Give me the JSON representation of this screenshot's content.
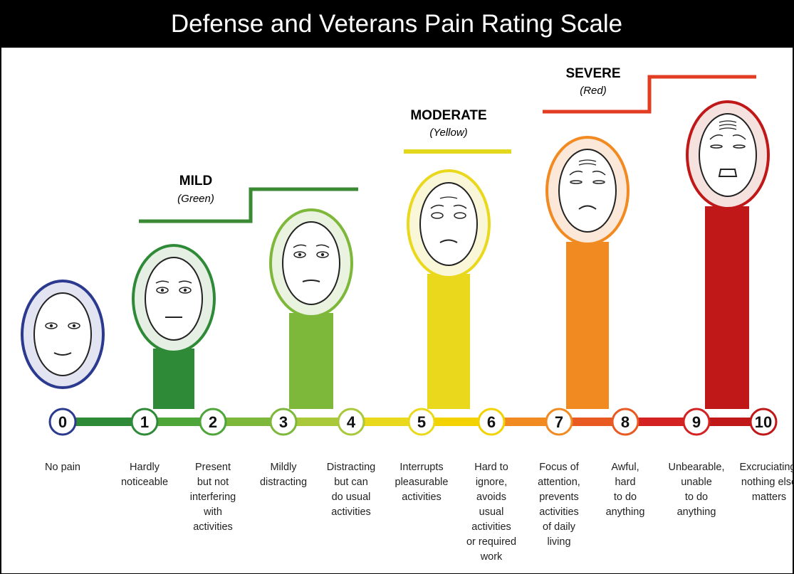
{
  "title": "Defense and Veterans Pain Rating Scale",
  "categories": [
    {
      "name": "MILD",
      "color_name": "(Green)"
    },
    {
      "name": "MODERATE",
      "color_name": "(Yellow)"
    },
    {
      "name": "SEVERE",
      "color_name": "(Red)"
    }
  ],
  "levels": [
    {
      "number": "0",
      "description": [
        "No pain"
      ]
    },
    {
      "number": "1",
      "description": [
        "Hardly",
        "noticeable"
      ]
    },
    {
      "number": "2",
      "description": [
        "Present",
        "but not",
        "interfering",
        "with",
        "activities"
      ]
    },
    {
      "number": "3",
      "description": [
        "Mildly",
        "distracting"
      ]
    },
    {
      "number": "4",
      "description": [
        "Distracting",
        "but can",
        "do usual",
        "activities"
      ]
    },
    {
      "number": "5",
      "description": [
        "Interrupts",
        "pleasurable",
        "activities"
      ]
    },
    {
      "number": "6",
      "description": [
        "Hard to",
        "ignore,",
        "avoids",
        "usual",
        "activities",
        "or required",
        "work"
      ]
    },
    {
      "number": "7",
      "description": [
        "Focus of",
        "attention,",
        "prevents",
        "activities",
        "of daily",
        "living"
      ]
    },
    {
      "number": "8",
      "description": [
        "Awful,",
        "hard",
        "to do",
        "anything"
      ]
    },
    {
      "number": "9",
      "description": [
        "Unbearable,",
        "unable",
        "to do",
        "anything"
      ]
    },
    {
      "number": "10",
      "description": [
        "Excruciating,",
        "nothing else",
        "matters"
      ]
    }
  ]
}
